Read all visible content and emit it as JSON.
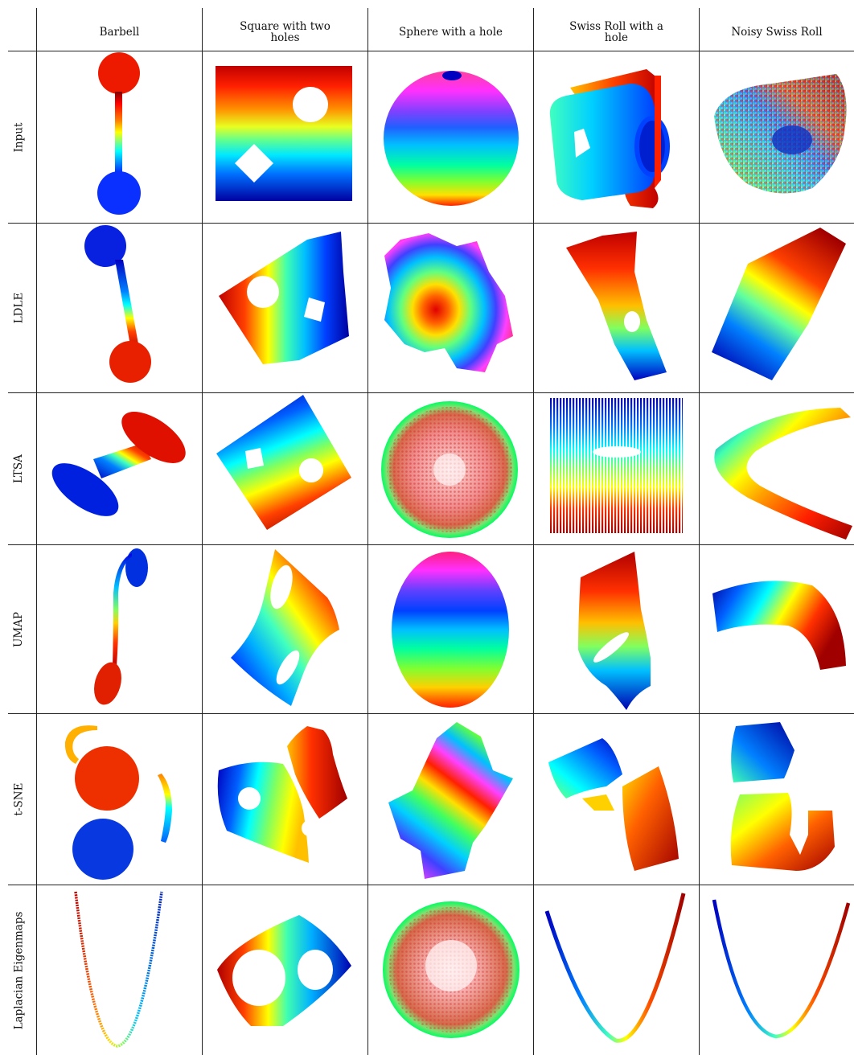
{
  "columns": [
    "Barbell",
    "Square with two holes",
    "Sphere with a hole",
    "Swiss Roll with a hole",
    "Noisy Swiss Roll"
  ],
  "column_display": [
    "Barbell",
    "Square with two\nholes",
    "Sphere with a hole",
    "Swiss Roll with a\nhole",
    "Noisy Swiss Roll"
  ],
  "rows": [
    "Input",
    "LDLE",
    "LTSA",
    "UMAP",
    "t-SNE",
    "Laplacian Eigenmaps"
  ],
  "colormap": "jet",
  "jet_colors": [
    "#00008f",
    "#0000ff",
    "#0080ff",
    "#00ffff",
    "#80ff80",
    "#ffff00",
    "#ff8000",
    "#ff0000",
    "#800000"
  ]
}
